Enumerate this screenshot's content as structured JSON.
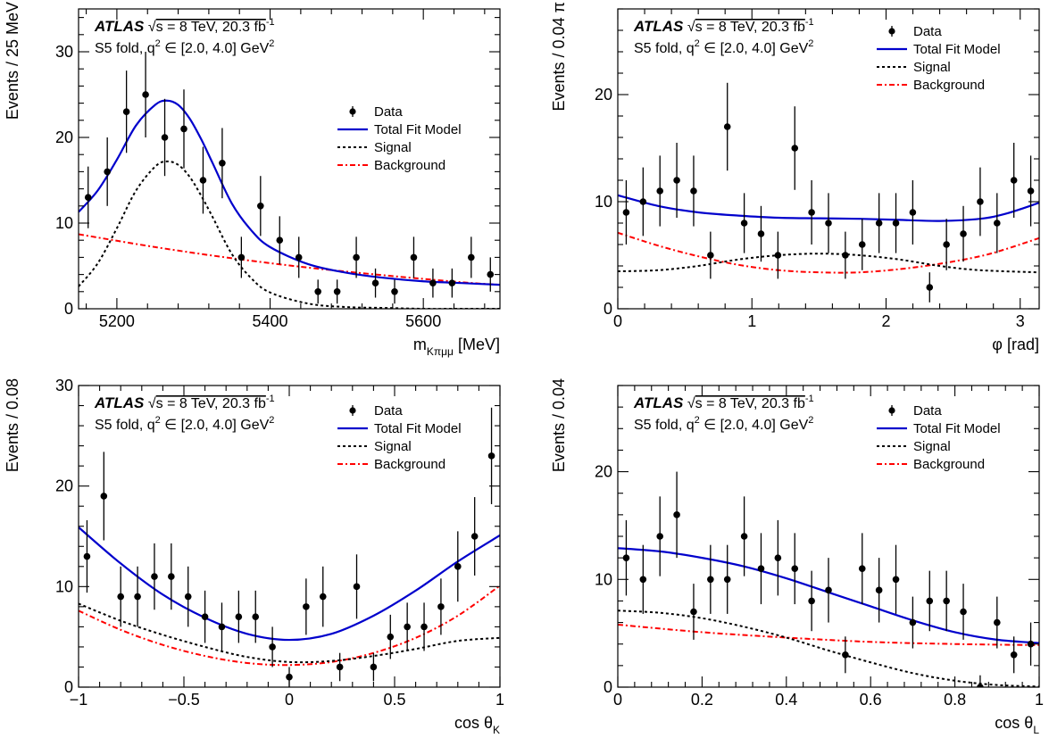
{
  "annotation": {
    "brand": "ATLAS",
    "sqrt_symbol": "√",
    "energy_text": "s = 8 TeV, 20.3 fb",
    "lumi_exponent": "-1",
    "fold_text": "S5 fold, q",
    "fold_sup": "2",
    "fold_range": " ∈ [2.0, 4.0] GeV",
    "fold_range_sup": "2"
  },
  "colors": {
    "data": "#000000",
    "total_fit": "#0000cc",
    "signal": "#000000",
    "background": "#ff0000"
  },
  "legend_entries": [
    "Data",
    "Total Fit Model",
    "Signal",
    "Background"
  ],
  "chart_data": [
    {
      "type": "scatter",
      "ylabel": "Events / 25 MeV",
      "xlabel_main": "m",
      "xlabel_sub": "Kπμμ",
      "xlabel_unit": " [MeV]",
      "xlim": [
        5150,
        5700
      ],
      "ylim": [
        0,
        35
      ],
      "xticks": [
        5200,
        5400,
        5600
      ],
      "xtick_labels": [
        "5200",
        "5400",
        "5600"
      ],
      "yticks": [
        0,
        10,
        20,
        30
      ],
      "ytick_labels": [
        "0",
        "10",
        "20",
        "30"
      ],
      "legend": "right",
      "data": {
        "x": [
          5162.5,
          5187.5,
          5212.5,
          5237.5,
          5262.5,
          5287.5,
          5312.5,
          5337.5,
          5362.5,
          5387.5,
          5412.5,
          5437.5,
          5462.5,
          5487.5,
          5512.5,
          5537.5,
          5562.5,
          5587.5,
          5612.5,
          5637.5,
          5662.5,
          5687.5
        ],
        "y": [
          13,
          16,
          23,
          25,
          20,
          21,
          15,
          17,
          6,
          12,
          8,
          6,
          2,
          2,
          6,
          3,
          2,
          6,
          3,
          3,
          6,
          4
        ],
        "yerr": [
          3.6,
          4.0,
          4.8,
          5.0,
          4.5,
          4.6,
          3.9,
          4.1,
          2.4,
          3.5,
          2.8,
          2.4,
          1.4,
          1.4,
          2.4,
          1.7,
          1.4,
          2.4,
          1.7,
          1.7,
          2.4,
          2.0
        ]
      },
      "series": [
        {
          "name": "Total Fit Model",
          "x": [
            5150,
            5175,
            5200,
            5225,
            5250,
            5265,
            5280,
            5295,
            5310,
            5325,
            5350,
            5375,
            5400,
            5450,
            5500,
            5550,
            5600,
            5650,
            5700
          ],
          "y": [
            11.3,
            13.8,
            17.4,
            21.4,
            23.8,
            24.3,
            23.8,
            22.2,
            19.8,
            17.0,
            12.3,
            9.2,
            7.2,
            5.2,
            4.2,
            3.6,
            3.2,
            3.0,
            2.8
          ]
        },
        {
          "name": "Signal",
          "x": [
            5150,
            5175,
            5200,
            5225,
            5250,
            5265,
            5280,
            5295,
            5310,
            5325,
            5350,
            5375,
            5400,
            5450,
            5500,
            5550,
            5600,
            5650,
            5700
          ],
          "y": [
            2.6,
            5.3,
            9.4,
            13.8,
            16.6,
            17.2,
            16.8,
            15.4,
            13.2,
            10.7,
            6.4,
            3.6,
            1.9,
            0.6,
            0.2,
            0.1,
            0.0,
            0.0,
            0.0
          ]
        },
        {
          "name": "Background",
          "x": [
            5150,
            5250,
            5350,
            5450,
            5550,
            5650,
            5700
          ],
          "y": [
            8.7,
            7.2,
            5.9,
            4.8,
            3.9,
            3.1,
            2.8
          ]
        }
      ]
    },
    {
      "type": "scatter",
      "ylabel": "Events / 0.04 π",
      "xlabel_main": "φ [rad]",
      "xlabel_sub": "",
      "xlabel_unit": "",
      "xlim": [
        0,
        3.1416
      ],
      "ylim": [
        0,
        28
      ],
      "xticks": [
        0,
        1,
        2,
        3
      ],
      "xtick_labels": [
        "0",
        "1",
        "2",
        "3"
      ],
      "yticks": [
        0,
        10,
        20
      ],
      "ytick_labels": [
        "0",
        "10",
        "20"
      ],
      "legend": "top-right",
      "data": {
        "x": [
          0.0628,
          0.1885,
          0.3142,
          0.4398,
          0.5655,
          0.6912,
          0.8168,
          0.9425,
          1.0681,
          1.1938,
          1.3195,
          1.4451,
          1.5708,
          1.6965,
          1.8221,
          1.9478,
          2.0735,
          2.1991,
          2.3248,
          2.4504,
          2.5761,
          2.7018,
          2.8274,
          2.9531,
          3.0788
        ],
        "y": [
          9,
          10,
          11,
          12,
          11,
          5,
          17,
          8,
          7,
          5,
          15,
          9,
          8,
          5,
          6,
          8,
          8,
          9,
          2,
          6,
          7,
          10,
          8,
          12,
          11
        ],
        "yerr": [
          3.0,
          3.2,
          3.3,
          3.5,
          3.3,
          2.2,
          4.1,
          2.8,
          2.6,
          2.2,
          3.9,
          3.0,
          2.8,
          2.2,
          2.4,
          2.8,
          2.8,
          3.0,
          1.4,
          2.4,
          2.6,
          3.2,
          2.8,
          3.5,
          3.3
        ]
      },
      "series": [
        {
          "name": "Total Fit Model",
          "x": [
            0,
            0.3,
            0.6,
            0.9,
            1.2,
            1.5,
            1.8,
            2.1,
            2.4,
            2.7,
            2.9,
            3.1416
          ],
          "y": [
            10.6,
            9.6,
            9.0,
            8.7,
            8.5,
            8.45,
            8.4,
            8.3,
            8.2,
            8.4,
            8.9,
            9.9
          ]
        },
        {
          "name": "Signal",
          "x": [
            0,
            0.3,
            0.6,
            0.9,
            1.2,
            1.5,
            1.8,
            2.1,
            2.4,
            2.7,
            3.1416
          ],
          "y": [
            3.5,
            3.6,
            4.0,
            4.6,
            5.0,
            5.15,
            5.0,
            4.6,
            4.0,
            3.6,
            3.4
          ]
        },
        {
          "name": "Background",
          "x": [
            0,
            0.3,
            0.6,
            0.9,
            1.2,
            1.5,
            1.8,
            2.1,
            2.4,
            2.7,
            2.9,
            3.1416
          ],
          "y": [
            7.1,
            5.9,
            4.9,
            4.1,
            3.6,
            3.4,
            3.4,
            3.7,
            4.2,
            4.9,
            5.6,
            6.6
          ]
        }
      ]
    },
    {
      "type": "scatter",
      "ylabel": "Events / 0.08",
      "xlabel_main": "cos θ",
      "xlabel_sub": "K",
      "xlabel_unit": "",
      "xlim": [
        -1,
        1
      ],
      "ylim": [
        0,
        30
      ],
      "xticks": [
        -1,
        -0.5,
        0,
        0.5,
        1
      ],
      "xtick_labels": [
        "−1",
        "−0.5",
        "0",
        "0.5",
        "1"
      ],
      "yticks": [
        0,
        10,
        20,
        30
      ],
      "ytick_labels": [
        "0",
        "10",
        "20",
        "30"
      ],
      "legend": "top-right",
      "data": {
        "x": [
          -0.96,
          -0.88,
          -0.8,
          -0.72,
          -0.64,
          -0.56,
          -0.48,
          -0.4,
          -0.32,
          -0.24,
          -0.16,
          -0.08,
          0.0,
          0.08,
          0.16,
          0.24,
          0.32,
          0.4,
          0.48,
          0.56,
          0.64,
          0.72,
          0.8,
          0.88,
          0.96
        ],
        "y": [
          13,
          19,
          9,
          9,
          11,
          11,
          9,
          7,
          6,
          7,
          7,
          4,
          1,
          8,
          9,
          2,
          10,
          2,
          5,
          6,
          6,
          8,
          12,
          15,
          23
        ],
        "yerr": [
          3.6,
          4.4,
          3.0,
          3.0,
          3.3,
          3.3,
          3.0,
          2.6,
          2.4,
          2.6,
          2.6,
          2.0,
          1.0,
          2.8,
          3.0,
          1.4,
          3.2,
          1.4,
          2.2,
          2.4,
          2.4,
          2.8,
          3.5,
          3.9,
          4.8
        ]
      },
      "series": [
        {
          "name": "Total Fit Model",
          "x": [
            -1,
            -0.8,
            -0.6,
            -0.4,
            -0.2,
            0,
            0.2,
            0.4,
            0.6,
            0.8,
            1
          ],
          "y": [
            15.9,
            12.3,
            9.2,
            6.9,
            5.3,
            4.7,
            5.3,
            7.1,
            9.6,
            12.5,
            15.1
          ]
        },
        {
          "name": "Signal",
          "x": [
            -1,
            -0.8,
            -0.6,
            -0.4,
            -0.2,
            0,
            0.2,
            0.4,
            0.6,
            0.8,
            1
          ],
          "y": [
            8.3,
            6.6,
            5.2,
            4.0,
            3.0,
            2.5,
            2.6,
            3.1,
            3.8,
            4.6,
            4.9
          ]
        },
        {
          "name": "Background",
          "x": [
            -1,
            -0.8,
            -0.6,
            -0.4,
            -0.2,
            0,
            0.2,
            0.4,
            0.6,
            0.8,
            1
          ],
          "y": [
            7.6,
            5.7,
            4.2,
            3.1,
            2.4,
            2.2,
            2.5,
            3.4,
            4.9,
            7.1,
            10.1
          ]
        }
      ]
    },
    {
      "type": "scatter",
      "ylabel": "Events / 0.04",
      "xlabel_main": "cos θ",
      "xlabel_sub": "L",
      "xlabel_unit": "",
      "xlim": [
        0,
        1
      ],
      "ylim": [
        0,
        28
      ],
      "xticks": [
        0,
        0.2,
        0.4,
        0.6,
        0.8,
        1
      ],
      "xtick_labels": [
        "0",
        "0.2",
        "0.4",
        "0.6",
        "0.8",
        "1"
      ],
      "yticks": [
        0,
        10,
        20
      ],
      "ytick_labels": [
        "0",
        "10",
        "20"
      ],
      "legend": "top-right",
      "data": {
        "x": [
          0.02,
          0.06,
          0.1,
          0.14,
          0.18,
          0.22,
          0.26,
          0.3,
          0.34,
          0.38,
          0.42,
          0.46,
          0.5,
          0.54,
          0.58,
          0.62,
          0.66,
          0.7,
          0.74,
          0.78,
          0.82,
          0.86,
          0.9,
          0.94,
          0.98
        ],
        "y": [
          12,
          10,
          14,
          16,
          7,
          10,
          10,
          14,
          11,
          12,
          11,
          8,
          9,
          3,
          11,
          9,
          10,
          6,
          8,
          8,
          7,
          0,
          6,
          3,
          4
        ],
        "yerr": [
          3.5,
          3.2,
          3.7,
          4.0,
          2.6,
          3.2,
          3.2,
          3.7,
          3.3,
          3.5,
          3.3,
          2.8,
          3.0,
          1.7,
          3.3,
          3.0,
          3.2,
          2.4,
          2.8,
          2.8,
          2.6,
          1.1,
          2.4,
          1.7,
          2.0
        ]
      },
      "series": [
        {
          "name": "Total Fit Model",
          "x": [
            0,
            0.1,
            0.2,
            0.3,
            0.4,
            0.5,
            0.6,
            0.7,
            0.8,
            0.9,
            1
          ],
          "y": [
            12.9,
            12.6,
            12.0,
            11.2,
            10.1,
            8.8,
            7.5,
            6.2,
            5.1,
            4.4,
            4.1
          ]
        },
        {
          "name": "Signal",
          "x": [
            0,
            0.1,
            0.2,
            0.3,
            0.4,
            0.5,
            0.6,
            0.7,
            0.8,
            0.9,
            1
          ],
          "y": [
            7.1,
            6.9,
            6.4,
            5.6,
            4.6,
            3.4,
            2.3,
            1.3,
            0.6,
            0.2,
            0.05
          ]
        },
        {
          "name": "Background",
          "x": [
            0,
            0.2,
            0.4,
            0.6,
            0.8,
            1
          ],
          "y": [
            5.8,
            5.1,
            4.6,
            4.2,
            4.0,
            3.9
          ]
        }
      ]
    }
  ]
}
